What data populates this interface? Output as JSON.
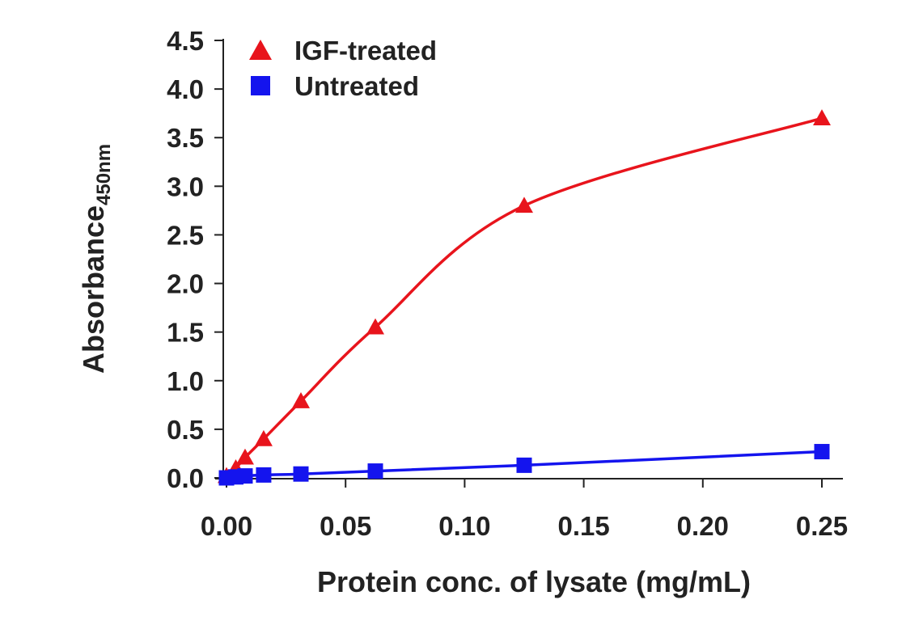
{
  "chart_data": {
    "type": "line",
    "title": "",
    "xlabel": "Protein conc. of lysate (mg/mL)",
    "ylabel_main": "Absorbance",
    "ylabel_sub": "450nm",
    "xlim": [
      0,
      0.25
    ],
    "ylim": [
      0,
      4.5
    ],
    "x_ticks": [
      "0.00",
      "0.05",
      "0.10",
      "0.15",
      "0.20",
      "0.25"
    ],
    "y_ticks": [
      "0.0",
      "0.5",
      "1.0",
      "1.5",
      "2.0",
      "2.5",
      "3.0",
      "3.5",
      "4.0",
      "4.5"
    ],
    "grid": false,
    "legend_position": "top-left",
    "series": [
      {
        "name": "IGF-treated",
        "marker": "triangle",
        "color": "#e8141c",
        "x": [
          0,
          0.0039,
          0.0078,
          0.0156,
          0.03125,
          0.0625,
          0.125,
          0.25
        ],
        "y": [
          0.02,
          0.1,
          0.21,
          0.4,
          0.79,
          1.55,
          2.8,
          3.7
        ]
      },
      {
        "name": "Untreated",
        "marker": "square",
        "color": "#1414ee",
        "x": [
          0,
          0.0039,
          0.0078,
          0.0156,
          0.03125,
          0.0625,
          0.125,
          0.25
        ],
        "y": [
          0.0,
          0.01,
          0.02,
          0.03,
          0.04,
          0.07,
          0.13,
          0.27
        ]
      }
    ]
  }
}
